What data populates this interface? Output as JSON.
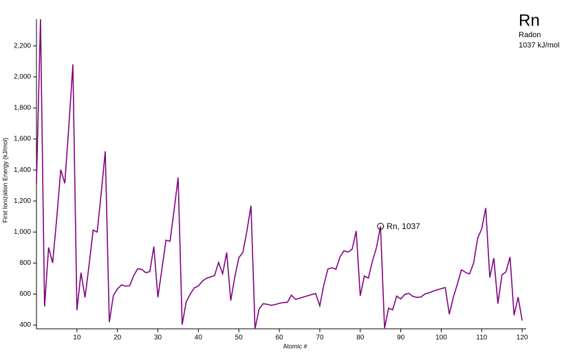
{
  "chart_data": {
    "type": "line",
    "x_label": "Atomic #",
    "y_label": "First Ionization Energy (kJ/mol)",
    "x": [
      0,
      1,
      2,
      3,
      4,
      5,
      6,
      7,
      8,
      9,
      10,
      11,
      12,
      13,
      14,
      15,
      16,
      17,
      18,
      19,
      20,
      21,
      22,
      23,
      24,
      25,
      26,
      27,
      28,
      29,
      30,
      31,
      32,
      33,
      34,
      35,
      36,
      37,
      38,
      39,
      40,
      41,
      42,
      43,
      44,
      45,
      46,
      47,
      48,
      49,
      50,
      51,
      52,
      53,
      54,
      55,
      56,
      57,
      58,
      59,
      60,
      61,
      62,
      63,
      64,
      65,
      66,
      67,
      68,
      69,
      70,
      71,
      72,
      73,
      74,
      75,
      76,
      77,
      78,
      79,
      80,
      81,
      82,
      83,
      84,
      85,
      86,
      87,
      88,
      89,
      90,
      91,
      92,
      93,
      94,
      95,
      96,
      97,
      98,
      99,
      100,
      101,
      102,
      103,
      104,
      105,
      106,
      107,
      108,
      109,
      110,
      111,
      112,
      113,
      114,
      115,
      116,
      117,
      118,
      119,
      120
    ],
    "series": [
      {
        "color": "#800080",
        "values": [
          1312,
          2372,
          520,
          900,
          801,
          1086,
          1402,
          1314,
          1681,
          2081,
          496,
          738,
          578,
          787,
          1012,
          1000,
          1251,
          1521,
          419,
          590,
          633,
          659,
          651,
          653,
          717,
          763,
          760,
          737,
          745,
          906,
          579,
          762,
          947,
          941,
          1140,
          1351,
          403,
          550,
          600,
          640,
          652,
          684,
          702,
          710,
          720,
          804,
          731,
          868,
          558,
          709,
          834,
          869,
          1008,
          1170,
          376,
          503,
          538,
          534,
          527,
          533,
          540,
          545,
          547,
          593,
          566,
          573,
          581,
          589,
          597,
          603,
          524,
          659,
          761,
          770,
          760,
          840,
          880,
          870,
          890,
          1007,
          589,
          716,
          703,
          812,
          899,
          1037,
          380,
          509,
          499,
          587,
          568,
          598,
          605,
          585,
          578,
          581,
          601,
          608,
          619,
          627,
          635,
          642,
          470,
          580,
          665,
          757,
          740,
          730,
          800,
          960,
          1020,
          1155,
          707,
          832,
          538,
          724,
          743,
          839,
          463,
          580,
          430
        ]
      }
    ],
    "xlim": [
      0,
      121
    ],
    "ylim": [
      376,
      2372
    ],
    "xticks": [
      10,
      20,
      30,
      40,
      50,
      60,
      70,
      80,
      90,
      100,
      110,
      120
    ],
    "yticks": [
      400,
      600,
      800,
      {
        "value": 1000,
        "label": "1,000"
      },
      {
        "value": 1200,
        "label": "1,200"
      },
      {
        "value": 1400,
        "label": "1,400"
      },
      {
        "value": 1600,
        "label": "1,600"
      },
      {
        "value": 1800,
        "label": "1,800"
      },
      {
        "value": 2000,
        "label": "2,000"
      },
      {
        "value": 2200,
        "label": "2,200"
      }
    ],
    "highlight": {
      "index": 85,
      "label": "Rn, 1037",
      "symbol": "Rn",
      "name": "Radon",
      "energy": "1037 kJ/mol"
    }
  }
}
